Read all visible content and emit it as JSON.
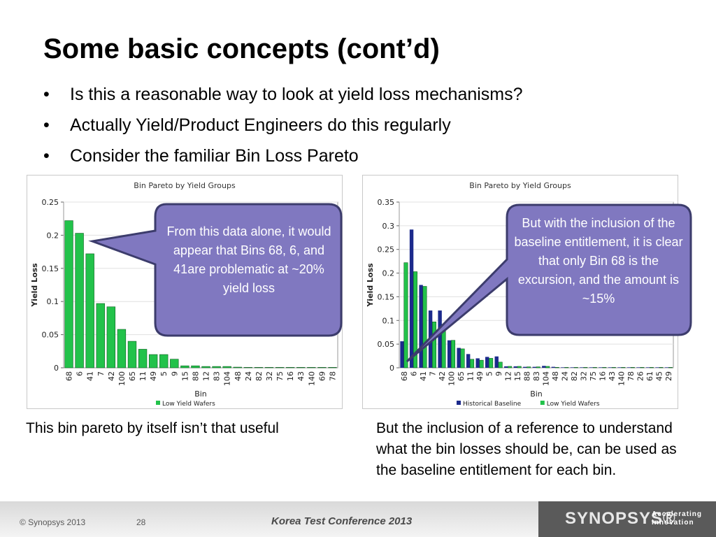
{
  "slide": {
    "title": "Some basic concepts (cont’d)",
    "bullets": [
      "Is this a reasonable way to look at yield loss mechanisms?",
      "Actually Yield/Product Engineers do this regularly",
      "Consider the familiar Bin Loss Pareto"
    ],
    "caption_left": "This bin pareto by itself isn’t that useful",
    "caption_right": "But the inclusion of a reference to understand what the bin losses should be, can be used as the baseline entitlement for each bin.",
    "callout_left": "From this data alone, it would appear that Bins 68, 6, and 41are problematic at ~20% yield loss",
    "callout_right": "But with the inclusion of the baseline entitlement, it is clear that only Bin 68 is the excursion, and the amount is ~15%",
    "footer": {
      "copyright": "© Synopsys 2013",
      "page": "28",
      "conference": "Korea Test Conference 2013",
      "logo": "SYNOPSYS®",
      "tagline_1": "Accelerating",
      "tagline_2": "Innovation"
    }
  },
  "colors": {
    "low_yield": "#22c24a",
    "baseline": "#1c2a8c",
    "callout_fill": "#8078c0",
    "callout_stroke": "#3c3c6c"
  },
  "chart_data": [
    {
      "type": "bar",
      "title": "Bin Pareto by Yield Groups",
      "xlabel": "Bin",
      "ylabel": "Yield Loss",
      "ylim": [
        0,
        0.25
      ],
      "yticks": [
        "0",
        "0.05",
        "0.1",
        "0.15",
        "0.2",
        "0.25"
      ],
      "categories": [
        "68",
        "6",
        "41",
        "7",
        "42",
        "100",
        "65",
        "11",
        "49",
        "5",
        "9",
        "15",
        "88",
        "12",
        "83",
        "104",
        "48",
        "24",
        "82",
        "32",
        "75",
        "16",
        "43",
        "140",
        "69",
        "78"
      ],
      "series": [
        {
          "name": "Low Yield Wafers",
          "color": "#22c24a",
          "values": [
            0.222,
            0.203,
            0.172,
            0.097,
            0.092,
            0.058,
            0.04,
            0.028,
            0.02,
            0.02,
            0.013,
            0.003,
            0.003,
            0.002,
            0.002,
            0.002,
            0.001,
            0.0005,
            0.0005,
            0.0005,
            0.0005,
            0.0005,
            0.0005,
            0.0005,
            0.0005,
            0.0005
          ]
        }
      ],
      "legend_position": "bottom",
      "grid": true
    },
    {
      "type": "bar",
      "title": "Bin Pareto by Yield Groups",
      "xlabel": "Bin",
      "ylabel": "Yield Loss",
      "ylim": [
        0,
        0.35
      ],
      "yticks": [
        "0",
        "0.05",
        "0.1",
        "0.15",
        "0.2",
        "0.25",
        "0.3",
        "0.35"
      ],
      "categories": [
        "68",
        "6",
        "41",
        "7",
        "42",
        "100",
        "65",
        "11",
        "49",
        "5",
        "9",
        "12",
        "15",
        "88",
        "83",
        "104",
        "48",
        "24",
        "82",
        "32",
        "75",
        "16",
        "43",
        "140",
        "78",
        "26",
        "61",
        "45",
        "29"
      ],
      "series": [
        {
          "name": "Historical Baseline",
          "color": "#1c2a8c",
          "values": [
            0.056,
            0.292,
            0.175,
            0.121,
            0.121,
            0.058,
            0.042,
            0.029,
            0.02,
            0.023,
            0.024,
            0.003,
            0.003,
            0.002,
            0.002,
            0.004,
            0.002,
            0.001,
            0.001,
            0.001,
            0.001,
            0.001,
            0.001,
            0.001,
            0.001,
            0.001,
            0.001,
            0.001,
            0.001
          ]
        },
        {
          "name": "Low Yield Wafers",
          "color": "#22c24a",
          "values": [
            0.222,
            0.203,
            0.172,
            0.097,
            0.092,
            0.058,
            0.04,
            0.018,
            0.016,
            0.02,
            0.012,
            0.003,
            0.003,
            0.002,
            0.002,
            0.003,
            0.001,
            0.0005,
            0.0005,
            0.0005,
            0.0005,
            0.0005,
            0.0005,
            0.0005,
            0.0005,
            0.0005,
            0.0005,
            0.0005,
            0.0005
          ]
        }
      ],
      "legend_position": "bottom",
      "grid": true
    }
  ]
}
